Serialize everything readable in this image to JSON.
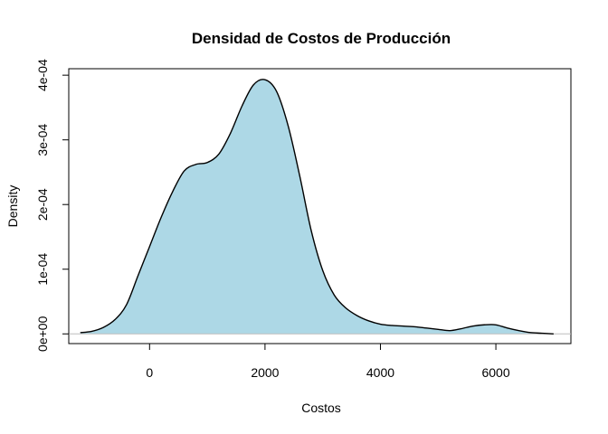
{
  "chart_data": {
    "type": "area",
    "title": "Densidad de Costos de Producción",
    "xlabel": "Costos",
    "ylabel": "Density",
    "xlim": [
      -1400,
      7300
    ],
    "ylim": [
      -1.5e-05,
      0.00041
    ],
    "x_ticks": [
      0,
      2000,
      4000,
      6000
    ],
    "x_tick_labels": [
      "0",
      "2000",
      "4000",
      "6000"
    ],
    "y_ticks": [
      0,
      0.0001,
      0.0002,
      0.0003,
      0.0004
    ],
    "y_tick_labels": [
      "0e+00",
      "1e-04",
      "2e-04",
      "3e-04",
      "4e-04"
    ],
    "fill_color": "#ADD8E6",
    "line_color": "#000000",
    "baseline_color": "#BEBEBE",
    "grid": false,
    "series": [
      {
        "x": [
          -1200,
          -1000,
          -800,
          -600,
          -400,
          -200,
          0,
          200,
          400,
          600,
          800,
          1000,
          1200,
          1400,
          1600,
          1800,
          2000,
          2200,
          2400,
          2600,
          2800,
          3000,
          3200,
          3400,
          3600,
          3800,
          4000,
          4200,
          4400,
          4600,
          4800,
          5000,
          5200,
          5400,
          5600,
          5800,
          6000,
          6200,
          6400,
          6600,
          6800,
          7000
        ],
        "y": [
          2e-06,
          4e-06,
          1e-05,
          2.2e-05,
          4.5e-05,
          9e-05,
          0.000135,
          0.00018,
          0.00022,
          0.000252,
          0.000262,
          0.000265,
          0.000278,
          0.00031,
          0.000352,
          0.000385,
          0.000393,
          0.000375,
          0.000322,
          0.000245,
          0.00016,
          9.8e-05,
          6e-05,
          4e-05,
          2.8e-05,
          2e-05,
          1.5e-05,
          1.3e-05,
          1.2e-05,
          1.1e-05,
          9e-06,
          7e-06,
          5e-06,
          8e-06,
          1.2e-05,
          1.4e-05,
          1.4e-05,
          9e-06,
          5e-06,
          2e-06,
          1e-06,
          0.0
        ]
      }
    ]
  }
}
